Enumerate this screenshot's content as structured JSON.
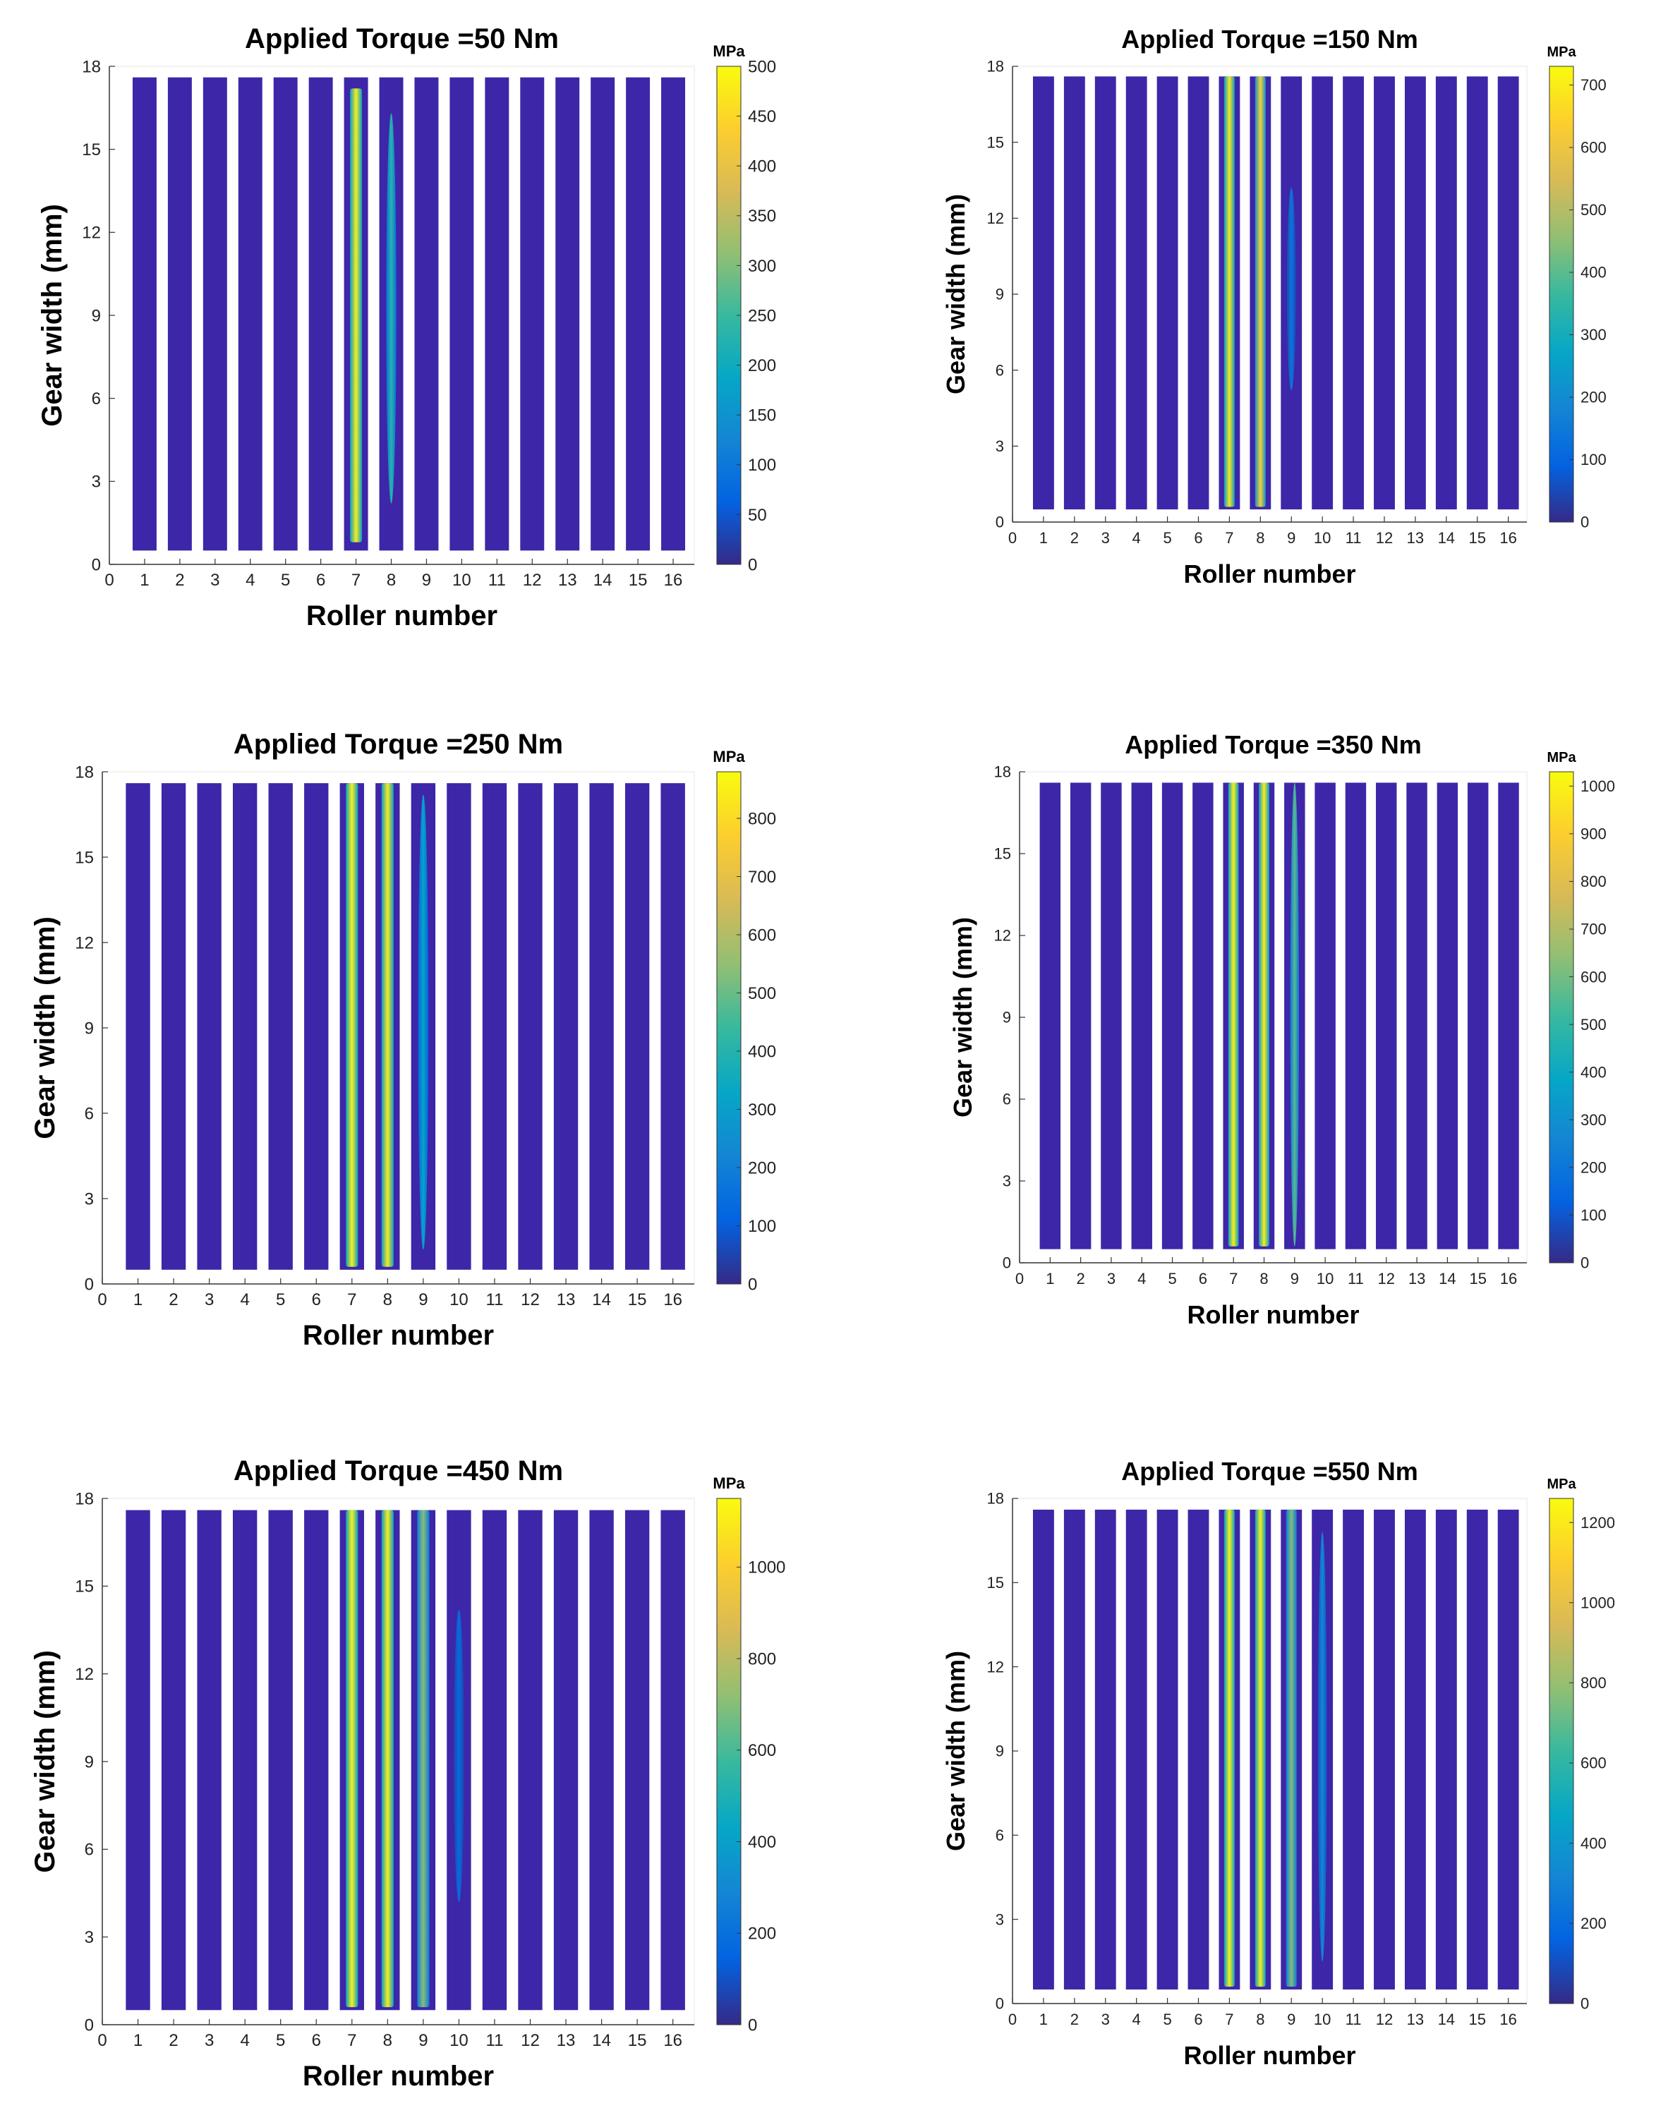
{
  "chart_data": [
    {
      "type": "heatmap",
      "title": "Applied Torque =50 Nm",
      "xlabel": "Roller number",
      "ylabel": "Gear width (mm)",
      "x_ticks": [
        "0",
        "1",
        "2",
        "3",
        "4",
        "5",
        "6",
        "7",
        "8",
        "9",
        "10",
        "11",
        "12",
        "13",
        "14",
        "15",
        "16"
      ],
      "y_ticks": [
        "0",
        "3",
        "6",
        "9",
        "12",
        "15",
        "18"
      ],
      "xlim": [
        0,
        16.6
      ],
      "ylim": [
        0,
        18
      ],
      "rollers": [
        1,
        2,
        3,
        4,
        5,
        6,
        7,
        8,
        9,
        10,
        11,
        12,
        13,
        14,
        15,
        16
      ],
      "roller_extent_mm": [
        0.5,
        17.6
      ],
      "colorbar": {
        "unit": "MPa",
        "range": [
          0,
          500
        ],
        "ticks": [
          "0",
          "50",
          "100",
          "150",
          "200",
          "250",
          "300",
          "350",
          "400",
          "450",
          "500"
        ]
      },
      "hotspots": [
        {
          "roller": 7,
          "peak_mpa": 480,
          "extent_mm": [
            0.8,
            17.2
          ]
        },
        {
          "roller": 8,
          "peak_mpa": 230,
          "extent_mm": [
            2.2,
            16.3
          ]
        }
      ]
    },
    {
      "type": "heatmap",
      "title": "Applied Torque =150 Nm",
      "xlabel": "Roller number",
      "ylabel": "Gear width (mm)",
      "x_ticks": [
        "0",
        "1",
        "2",
        "3",
        "4",
        "5",
        "6",
        "7",
        "8",
        "9",
        "10",
        "11",
        "12",
        "13",
        "14",
        "15",
        "16"
      ],
      "y_ticks": [
        "0",
        "3",
        "6",
        "9",
        "12",
        "15",
        "18"
      ],
      "xlim": [
        0,
        16.6
      ],
      "ylim": [
        0,
        18
      ],
      "rollers": [
        1,
        2,
        3,
        4,
        5,
        6,
        7,
        8,
        9,
        10,
        11,
        12,
        13,
        14,
        15,
        16
      ],
      "roller_extent_mm": [
        0.5,
        17.6
      ],
      "colorbar": {
        "unit": "MPa",
        "range": [
          0,
          730
        ],
        "ticks": [
          "0",
          "100",
          "200",
          "300",
          "400",
          "500",
          "600",
          "700"
        ]
      },
      "hotspots": [
        {
          "roller": 7,
          "peak_mpa": 690,
          "extent_mm": [
            0.6,
            17.6
          ]
        },
        {
          "roller": 8,
          "peak_mpa": 640,
          "extent_mm": [
            0.6,
            17.6
          ]
        },
        {
          "roller": 9,
          "peak_mpa": 140,
          "extent_mm": [
            5.2,
            13.2
          ]
        }
      ]
    },
    {
      "type": "heatmap",
      "title": "Applied Torque =250 Nm",
      "xlabel": "Roller number",
      "ylabel": "Gear width (mm)",
      "x_ticks": [
        "0",
        "1",
        "2",
        "3",
        "4",
        "5",
        "6",
        "7",
        "8",
        "9",
        "10",
        "11",
        "12",
        "13",
        "14",
        "15",
        "16"
      ],
      "y_ticks": [
        "0",
        "3",
        "6",
        "9",
        "12",
        "15",
        "18"
      ],
      "xlim": [
        0,
        16.6
      ],
      "ylim": [
        0,
        18
      ],
      "rollers": [
        1,
        2,
        3,
        4,
        5,
        6,
        7,
        8,
        9,
        10,
        11,
        12,
        13,
        14,
        15,
        16
      ],
      "roller_extent_mm": [
        0.5,
        17.6
      ],
      "colorbar": {
        "unit": "MPa",
        "range": [
          0,
          880
        ],
        "ticks": [
          "0",
          "100",
          "200",
          "300",
          "400",
          "500",
          "600",
          "700",
          "800"
        ]
      },
      "hotspots": [
        {
          "roller": 7,
          "peak_mpa": 860,
          "extent_mm": [
            0.6,
            17.6
          ]
        },
        {
          "roller": 8,
          "peak_mpa": 840,
          "extent_mm": [
            0.6,
            17.6
          ]
        },
        {
          "roller": 9,
          "peak_mpa": 320,
          "extent_mm": [
            1.2,
            17.2
          ]
        }
      ]
    },
    {
      "type": "heatmap",
      "title": "Applied Torque =350 Nm",
      "xlabel": "Roller number",
      "ylabel": "Gear width (mm)",
      "x_ticks": [
        "0",
        "1",
        "2",
        "3",
        "4",
        "5",
        "6",
        "7",
        "8",
        "9",
        "10",
        "11",
        "12",
        "13",
        "14",
        "15",
        "16"
      ],
      "y_ticks": [
        "0",
        "3",
        "6",
        "9",
        "12",
        "15",
        "18"
      ],
      "xlim": [
        0,
        16.6
      ],
      "ylim": [
        0,
        18
      ],
      "rollers": [
        1,
        2,
        3,
        4,
        5,
        6,
        7,
        8,
        9,
        10,
        11,
        12,
        13,
        14,
        15,
        16
      ],
      "roller_extent_mm": [
        0.5,
        17.6
      ],
      "colorbar": {
        "unit": "MPa",
        "range": [
          0,
          1030
        ],
        "ticks": [
          "0",
          "100",
          "200",
          "300",
          "400",
          "500",
          "600",
          "700",
          "800",
          "900",
          "1000"
        ]
      },
      "hotspots": [
        {
          "roller": 7,
          "peak_mpa": 1000,
          "extent_mm": [
            0.6,
            17.6
          ]
        },
        {
          "roller": 8,
          "peak_mpa": 990,
          "extent_mm": [
            0.6,
            17.6
          ]
        },
        {
          "roller": 9,
          "peak_mpa": 560,
          "extent_mm": [
            0.6,
            17.6
          ]
        }
      ]
    },
    {
      "type": "heatmap",
      "title": "Applied Torque =450 Nm",
      "xlabel": "Roller number",
      "ylabel": "Gear width (mm)",
      "x_ticks": [
        "0",
        "1",
        "2",
        "3",
        "4",
        "5",
        "6",
        "7",
        "8",
        "9",
        "10",
        "11",
        "12",
        "13",
        "14",
        "15",
        "16"
      ],
      "y_ticks": [
        "0",
        "3",
        "6",
        "9",
        "12",
        "15",
        "18"
      ],
      "xlim": [
        0,
        16.6
      ],
      "ylim": [
        0,
        18
      ],
      "rollers": [
        1,
        2,
        3,
        4,
        5,
        6,
        7,
        8,
        9,
        10,
        11,
        12,
        13,
        14,
        15,
        16
      ],
      "roller_extent_mm": [
        0.5,
        17.6
      ],
      "colorbar": {
        "unit": "MPa",
        "range": [
          0,
          1150
        ],
        "ticks": [
          "0",
          "200",
          "400",
          "600",
          "800",
          "1000"
        ]
      },
      "hotspots": [
        {
          "roller": 7,
          "peak_mpa": 1120,
          "extent_mm": [
            0.6,
            17.6
          ]
        },
        {
          "roller": 8,
          "peak_mpa": 1110,
          "extent_mm": [
            0.6,
            17.6
          ]
        },
        {
          "roller": 9,
          "peak_mpa": 700,
          "extent_mm": [
            0.6,
            17.6
          ]
        },
        {
          "roller": 10,
          "peak_mpa": 180,
          "extent_mm": [
            4.2,
            14.2
          ]
        }
      ]
    },
    {
      "type": "heatmap",
      "title": "Applied Torque =550 Nm",
      "xlabel": "Roller number",
      "ylabel": "Gear width (mm)",
      "x_ticks": [
        "0",
        "1",
        "2",
        "3",
        "4",
        "5",
        "6",
        "7",
        "8",
        "9",
        "10",
        "11",
        "12",
        "13",
        "14",
        "15",
        "16"
      ],
      "y_ticks": [
        "0",
        "3",
        "6",
        "9",
        "12",
        "15",
        "18"
      ],
      "xlim": [
        0,
        16.6
      ],
      "ylim": [
        0,
        18
      ],
      "rollers": [
        1,
        2,
        3,
        4,
        5,
        6,
        7,
        8,
        9,
        10,
        11,
        12,
        13,
        14,
        15,
        16
      ],
      "roller_extent_mm": [
        0.5,
        17.6
      ],
      "colorbar": {
        "unit": "MPa",
        "range": [
          0,
          1260
        ],
        "ticks": [
          "0",
          "200",
          "400",
          "600",
          "800",
          "1000",
          "1200"
        ]
      },
      "hotspots": [
        {
          "roller": 7,
          "peak_mpa": 1230,
          "extent_mm": [
            0.6,
            17.6
          ]
        },
        {
          "roller": 8,
          "peak_mpa": 1220,
          "extent_mm": [
            0.6,
            17.6
          ]
        },
        {
          "roller": 9,
          "peak_mpa": 760,
          "extent_mm": [
            0.6,
            17.6
          ]
        },
        {
          "roller": 10,
          "peak_mpa": 330,
          "extent_mm": [
            1.5,
            16.8
          ]
        }
      ]
    }
  ],
  "colors": {
    "background_roller": "#3e26a8",
    "parula_stops": [
      "#352a87",
      "#0363e1",
      "#1485d4",
      "#06a7c6",
      "#38b99e",
      "#92bf73",
      "#d9ba56",
      "#fcce2e",
      "#f9fb0e"
    ]
  }
}
